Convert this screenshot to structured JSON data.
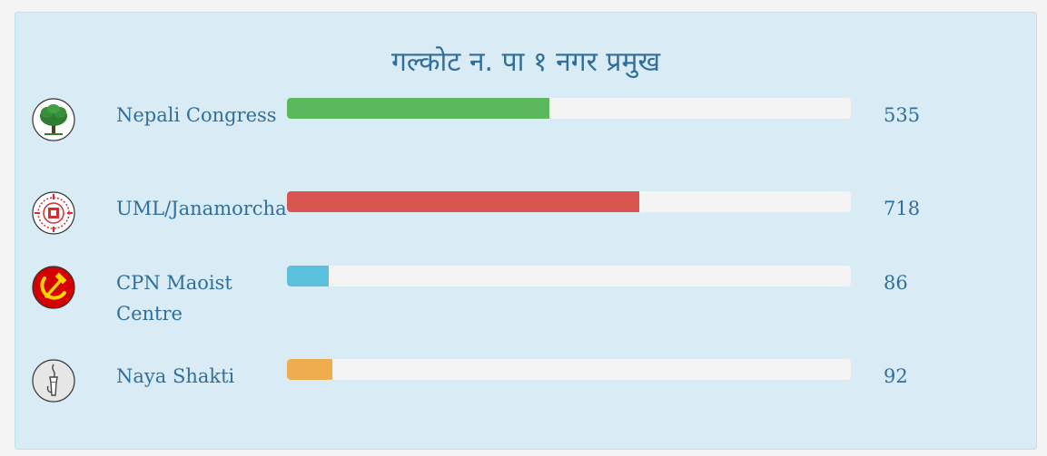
{
  "chart_data": {
    "type": "bar",
    "orientation": "horizontal",
    "title": "गल्कोट न. पा १ नगर प्रमुख",
    "xlim": [
      0,
      1150
    ],
    "categories": [
      "Nepali Congress",
      "UML/Janamorcha",
      "CPN Maoist Centre",
      "Naya Shakti"
    ],
    "values": [
      535,
      718,
      86,
      92
    ],
    "value_labels": [
      "535",
      "718",
      "86",
      "92"
    ],
    "colors": [
      "#5cb85c",
      "#d9534f",
      "#5bc0de",
      "#f0ad4e"
    ],
    "icons": [
      "tree-icon",
      "sun-emblem-icon",
      "hammer-sickle-icon",
      "torch-hand-icon"
    ]
  }
}
